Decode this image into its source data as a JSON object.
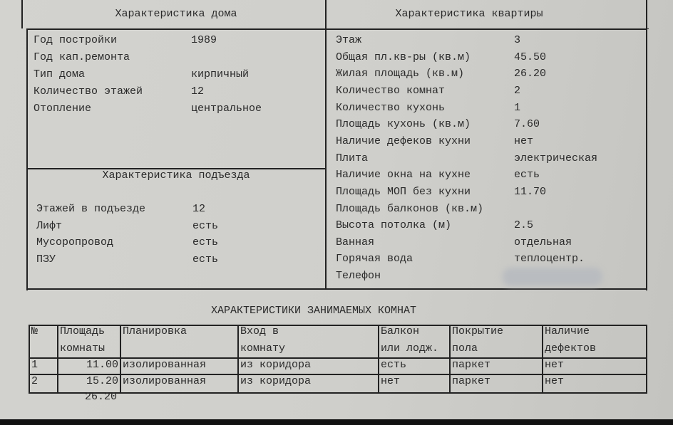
{
  "house": {
    "title": "Характеристика дома",
    "rows": [
      {
        "label": "Год постройки",
        "value": "1989"
      },
      {
        "label": "Год кап.ремонта",
        "value": ""
      },
      {
        "label": "Тип дома",
        "value": "кирпичный"
      },
      {
        "label": "Количество этажей",
        "value": "12"
      },
      {
        "label": "Отопление",
        "value": "центральное"
      }
    ]
  },
  "entrance": {
    "title": "Характеристика подъезда",
    "rows": [
      {
        "label": "Этажей в подъезде",
        "value": "12"
      },
      {
        "label": "Лифт",
        "value": "есть"
      },
      {
        "label": "Мусоропровод",
        "value": "есть"
      },
      {
        "label": "ПЗУ",
        "value": "есть"
      }
    ]
  },
  "apartment": {
    "title": "Характеристика квартиры",
    "rows": [
      {
        "label": "Этаж",
        "value": "3"
      },
      {
        "label": "Общая пл.кв-ры (кв.м)",
        "value": "45.50"
      },
      {
        "label": "Жилая площадь (кв.м)",
        "value": "26.20"
      },
      {
        "label": "Количество комнат",
        "value": "2"
      },
      {
        "label": "Количество кухонь",
        "value": "1"
      },
      {
        "label": "Площадь кухонь (кв.м)",
        "value": "7.60"
      },
      {
        "label": "Наличие дефеков кухни",
        "value": "нет"
      },
      {
        "label": "Плита",
        "value": "электрическая"
      },
      {
        "label": "Наличие окна на кухне",
        "value": "есть"
      },
      {
        "label": "Площадь МОП без кухни",
        "value": "11.70"
      },
      {
        "label": "Площадь балконов (кв.м)",
        "value": ""
      },
      {
        "label": "Высота потолка (м)",
        "value": "2.5"
      },
      {
        "label": "Ванная",
        "value": "отдельная"
      },
      {
        "label": "Горячая вода",
        "value": "теплоцентр."
      },
      {
        "label": "Телефон",
        "value": ""
      }
    ]
  },
  "rooms": {
    "title": "ХАРАКТЕРИСТИКИ ЗАНИМАЕМЫХ КОМНАТ",
    "headers": [
      [
        "№",
        ""
      ],
      [
        "Площадь",
        "комнаты"
      ],
      [
        "Планировка",
        ""
      ],
      [
        "Вход в",
        "комнату"
      ],
      [
        "Балкон",
        "или лодж."
      ],
      [
        "Покрытие",
        "пола"
      ],
      [
        "Наличие",
        "дефектов"
      ]
    ],
    "rows": [
      [
        "1",
        "11.00",
        "изолированная",
        "из коридора",
        "есть",
        "паркет",
        "нет"
      ],
      [
        "2",
        "15.20",
        "изолированная",
        "из коридора",
        "нет",
        "паркет",
        "нет"
      ]
    ],
    "total": "26.20"
  }
}
